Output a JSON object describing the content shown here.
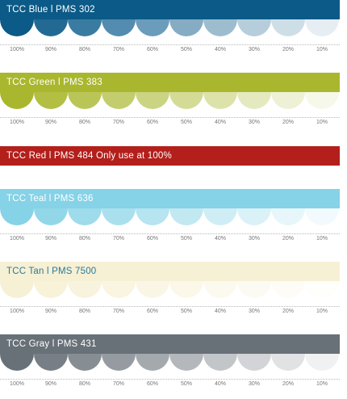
{
  "swatches": [
    {
      "label": "TCC Blue l PMS 302",
      "bar_color": "#0b5a87",
      "text_color": "#ffffff",
      "tints": [
        {
          "percent": "100%",
          "color": "#0b5a87"
        },
        {
          "percent": "90%",
          "color": "#226a94"
        },
        {
          "percent": "80%",
          "color": "#3a7ba1"
        },
        {
          "percent": "70%",
          "color": "#538cae"
        },
        {
          "percent": "60%",
          "color": "#6c9cbb"
        },
        {
          "percent": "50%",
          "color": "#85acc3"
        },
        {
          "percent": "40%",
          "color": "#9dbdcf"
        },
        {
          "percent": "30%",
          "color": "#b6cedb"
        },
        {
          "percent": "20%",
          "color": "#cedee7"
        },
        {
          "percent": "10%",
          "color": "#e7eef3"
        }
      ]
    },
    {
      "label": "TCC Green l PMS 383",
      "bar_color": "#a9b72e",
      "text_color": "#ffffff",
      "tints": [
        {
          "percent": "100%",
          "color": "#a9b72e"
        },
        {
          "percent": "90%",
          "color": "#b2bf43"
        },
        {
          "percent": "80%",
          "color": "#bac558"
        },
        {
          "percent": "70%",
          "color": "#c3cd6d"
        },
        {
          "percent": "60%",
          "color": "#cbd482"
        },
        {
          "percent": "50%",
          "color": "#d4db96"
        },
        {
          "percent": "40%",
          "color": "#dde2ab"
        },
        {
          "percent": "30%",
          "color": "#e5e9c0"
        },
        {
          "percent": "20%",
          "color": "#eef1d5"
        },
        {
          "percent": "10%",
          "color": "#f6f8ea"
        }
      ]
    },
    {
      "label": "TCC Red l PMS 484  Only use at 100%",
      "bar_color": "#b31f1b",
      "text_color": "#ffffff",
      "tints": []
    },
    {
      "label": "TCC Teal l PMS 636",
      "bar_color": "#86d2e6",
      "text_color": "#ffffff",
      "tints": [
        {
          "percent": "100%",
          "color": "#86d2e6"
        },
        {
          "percent": "90%",
          "color": "#92d7e8"
        },
        {
          "percent": "80%",
          "color": "#9edbeb"
        },
        {
          "percent": "70%",
          "color": "#aae0ee"
        },
        {
          "percent": "60%",
          "color": "#b6e4f0"
        },
        {
          "percent": "50%",
          "color": "#c2e8f2"
        },
        {
          "percent": "40%",
          "color": "#cfedf5"
        },
        {
          "percent": "30%",
          "color": "#dbf1f8"
        },
        {
          "percent": "20%",
          "color": "#e7f6fa"
        },
        {
          "percent": "10%",
          "color": "#f3fafd"
        }
      ]
    },
    {
      "label": "TCC Tan l PMS 7500",
      "bar_color": "#f6f0d4",
      "text_color": "#2b7a9a",
      "tints": [
        {
          "percent": "100%",
          "color": "#f6f0d4"
        },
        {
          "percent": "90%",
          "color": "#f7f2d8"
        },
        {
          "percent": "80%",
          "color": "#f8f3dd"
        },
        {
          "percent": "70%",
          "color": "#f9f5e1"
        },
        {
          "percent": "60%",
          "color": "#faf6e6"
        },
        {
          "percent": "50%",
          "color": "#fbf8ea"
        },
        {
          "percent": "40%",
          "color": "#fcf9ee"
        },
        {
          "percent": "30%",
          "color": "#fcfbf3"
        },
        {
          "percent": "20%",
          "color": "#fdfcf6"
        },
        {
          "percent": "10%",
          "color": "#fefefa"
        }
      ]
    },
    {
      "label": "TCC Gray l PMS 431",
      "bar_color": "#687078",
      "text_color": "#ffffff",
      "tints": [
        {
          "percent": "100%",
          "color": "#687078"
        },
        {
          "percent": "90%",
          "color": "#777e86"
        },
        {
          "percent": "80%",
          "color": "#868d93"
        },
        {
          "percent": "70%",
          "color": "#959ba1"
        },
        {
          "percent": "60%",
          "color": "#a4a9ae"
        },
        {
          "percent": "50%",
          "color": "#b4b8bc"
        },
        {
          "percent": "40%",
          "color": "#c3c6c9"
        },
        {
          "percent": "30%",
          "color": "#d2d4d7"
        },
        {
          "percent": "20%",
          "color": "#e1e2e4"
        },
        {
          "percent": "10%",
          "color": "#f0f1f2"
        }
      ]
    }
  ]
}
